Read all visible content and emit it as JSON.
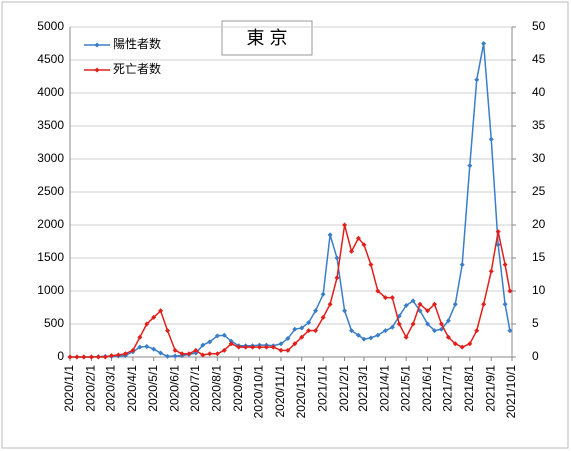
{
  "chart_data": {
    "type": "line",
    "title": "東 京",
    "x": [
      "2020/1/1",
      "2020/1/11",
      "2020/1/21",
      "2020/2/1",
      "2020/2/11",
      "2020/2/21",
      "2020/3/1",
      "2020/3/11",
      "2020/3/21",
      "2020/4/1",
      "2020/4/11",
      "2020/4/21",
      "2020/5/1",
      "2020/5/11",
      "2020/5/21",
      "2020/6/1",
      "2020/6/11",
      "2020/6/21",
      "2020/7/1",
      "2020/7/11",
      "2020/7/21",
      "2020/8/1",
      "2020/8/11",
      "2020/8/21",
      "2020/9/1",
      "2020/9/11",
      "2020/9/21",
      "2020/10/1",
      "2020/10/11",
      "2020/10/21",
      "2020/11/1",
      "2020/11/11",
      "2020/11/21",
      "2020/12/1",
      "2020/12/11",
      "2020/12/21",
      "2021/1/1",
      "2021/1/11",
      "2021/1/21",
      "2021/2/1",
      "2021/2/11",
      "2021/2/21",
      "2021/3/1",
      "2021/3/11",
      "2021/3/21",
      "2021/4/1",
      "2021/4/11",
      "2021/4/21",
      "2021/5/1",
      "2021/5/11",
      "2021/5/21",
      "2021/6/1",
      "2021/6/11",
      "2021/6/21",
      "2021/7/1",
      "2021/7/11",
      "2021/7/21",
      "2021/8/1",
      "2021/8/11",
      "2021/8/21",
      "2021/9/1",
      "2021/9/11",
      "2021/9/21",
      "2021/9/28"
    ],
    "series": [
      {
        "name": "陽性者数",
        "color": "#3a7ec8",
        "values": [
          0,
          0,
          0,
          0,
          5,
          10,
          10,
          15,
          20,
          80,
          150,
          160,
          120,
          60,
          10,
          15,
          20,
          40,
          60,
          180,
          230,
          320,
          330,
          240,
          170,
          170,
          170,
          180,
          180,
          170,
          200,
          280,
          420,
          440,
          520,
          700,
          950,
          1850,
          1500,
          700,
          400,
          330,
          270,
          290,
          330,
          400,
          450,
          620,
          780,
          850,
          700,
          500,
          400,
          420,
          550,
          800,
          1400,
          2900,
          4200,
          4750,
          3300,
          1700,
          800,
          400
        ]
      },
      {
        "name": "死亡者数",
        "color": "#e0201b",
        "axis": "y2",
        "values": [
          0,
          0,
          0,
          0,
          0,
          0,
          0.2,
          0.3,
          0.5,
          1,
          3,
          5,
          6,
          7,
          4,
          1,
          0.5,
          0.5,
          1,
          0.3,
          0.5,
          0.5,
          1,
          2,
          1.5,
          1.5,
          1.5,
          1.5,
          1.5,
          1.5,
          1,
          1,
          2,
          3,
          4,
          4,
          6,
          8,
          12,
          20,
          16,
          18,
          17,
          14,
          10,
          9,
          9,
          5,
          3,
          5,
          8,
          7,
          8,
          5,
          3,
          2,
          1.5,
          2,
          4,
          8,
          13,
          19,
          14,
          10
        ]
      }
    ],
    "xlim": [
      "2020/1/1",
      "2021/10/1"
    ],
    "xticks": [
      "2020/1/1",
      "2020/2/1",
      "2020/3/1",
      "2020/4/1",
      "2020/5/1",
      "2020/6/1",
      "2020/7/1",
      "2020/8/1",
      "2020/9/1",
      "2020/10/1",
      "2020/11/1",
      "2020/12/1",
      "2021/1/1",
      "2021/2/1",
      "2021/3/1",
      "2021/4/1",
      "2021/5/1",
      "2021/6/1",
      "2021/7/1",
      "2021/8/1",
      "2021/9/1",
      "2021/10/1"
    ],
    "ylim": [
      0,
      5000
    ],
    "yticks": [
      0,
      500,
      1000,
      1500,
      2000,
      2500,
      3000,
      3500,
      4000,
      4500,
      5000
    ],
    "y2lim": [
      0,
      50
    ],
    "y2ticks": [
      0,
      5,
      10,
      15,
      20,
      25,
      30,
      35,
      40,
      45,
      50
    ],
    "grid": true
  }
}
